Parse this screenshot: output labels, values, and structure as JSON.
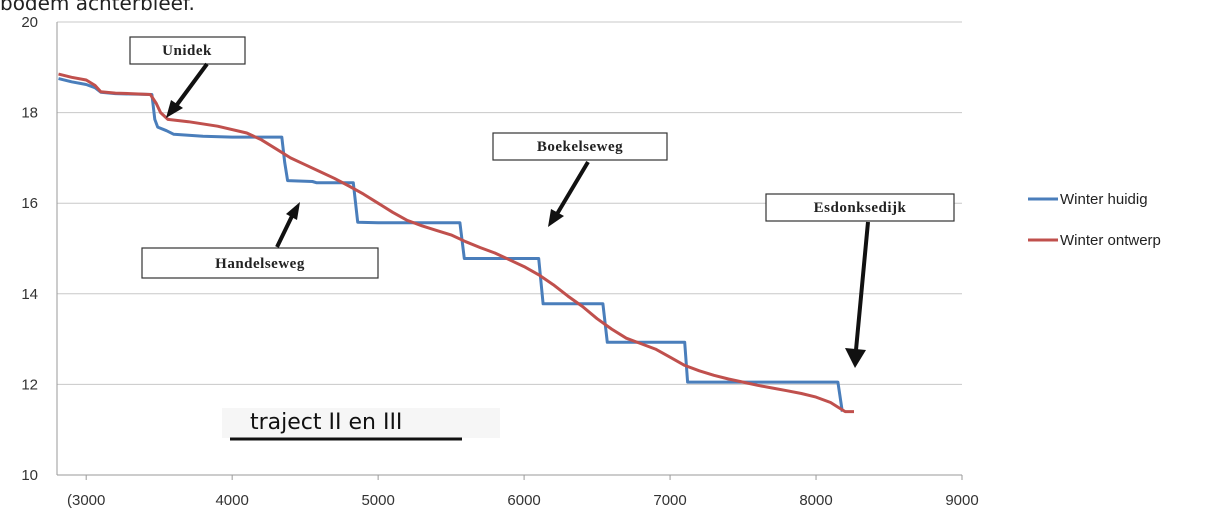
{
  "page": {
    "top_text": "bodem achterbleef."
  },
  "chart_data": {
    "type": "line",
    "title": "",
    "xlabel": "",
    "ylabel": "",
    "xlim": [
      2800,
      9000
    ],
    "ylim": [
      10,
      20
    ],
    "x_ticks": [
      3000,
      4000,
      5000,
      6000,
      7000,
      8000,
      9000
    ],
    "x_tick_labels": [
      "(3000",
      "4000",
      "5000",
      "6000",
      "7000",
      "8000",
      "9000"
    ],
    "y_ticks": [
      10,
      12,
      14,
      16,
      18,
      20
    ],
    "y_tick_labels": [
      "10",
      "12",
      "14",
      "16",
      "18",
      "20"
    ],
    "grid": "horizontal",
    "legend_position": "right",
    "series": [
      {
        "name": "Winter huidig",
        "color": "#4a7ebb",
        "points": [
          [
            2810,
            18.75
          ],
          [
            2900,
            18.68
          ],
          [
            3000,
            18.62
          ],
          [
            3060,
            18.55
          ],
          [
            3100,
            18.45
          ],
          [
            3200,
            18.42
          ],
          [
            3300,
            18.41
          ],
          [
            3450,
            18.4
          ],
          [
            3470,
            17.85
          ],
          [
            3490,
            17.68
          ],
          [
            3550,
            17.6
          ],
          [
            3600,
            17.52
          ],
          [
            3800,
            17.48
          ],
          [
            4000,
            17.46
          ],
          [
            4200,
            17.46
          ],
          [
            4340,
            17.46
          ],
          [
            4360,
            16.9
          ],
          [
            4380,
            16.5
          ],
          [
            4550,
            16.48
          ],
          [
            4580,
            16.45
          ],
          [
            4830,
            16.45
          ],
          [
            4860,
            15.58
          ],
          [
            5000,
            15.57
          ],
          [
            5560,
            15.57
          ],
          [
            5590,
            14.78
          ],
          [
            6100,
            14.78
          ],
          [
            6130,
            13.78
          ],
          [
            6540,
            13.78
          ],
          [
            6570,
            12.93
          ],
          [
            7100,
            12.93
          ],
          [
            7120,
            12.05
          ],
          [
            8150,
            12.05
          ],
          [
            8180,
            11.4
          ]
        ]
      },
      {
        "name": "Winter ontwerp",
        "color": "#c0504d",
        "points": [
          [
            2810,
            18.85
          ],
          [
            2900,
            18.78
          ],
          [
            3000,
            18.72
          ],
          [
            3060,
            18.6
          ],
          [
            3100,
            18.46
          ],
          [
            3200,
            18.43
          ],
          [
            3300,
            18.42
          ],
          [
            3440,
            18.4
          ],
          [
            3480,
            18.2
          ],
          [
            3510,
            18.0
          ],
          [
            3560,
            17.85
          ],
          [
            3700,
            17.8
          ],
          [
            3900,
            17.7
          ],
          [
            4100,
            17.55
          ],
          [
            4200,
            17.4
          ],
          [
            4300,
            17.2
          ],
          [
            4400,
            17.0
          ],
          [
            4500,
            16.85
          ],
          [
            4600,
            16.7
          ],
          [
            4700,
            16.55
          ],
          [
            4800,
            16.38
          ],
          [
            4900,
            16.2
          ],
          [
            5000,
            16.0
          ],
          [
            5100,
            15.8
          ],
          [
            5200,
            15.62
          ],
          [
            5300,
            15.5
          ],
          [
            5400,
            15.4
          ],
          [
            5500,
            15.3
          ],
          [
            5600,
            15.15
          ],
          [
            5700,
            15.02
          ],
          [
            5800,
            14.9
          ],
          [
            5900,
            14.75
          ],
          [
            6000,
            14.6
          ],
          [
            6100,
            14.42
          ],
          [
            6200,
            14.2
          ],
          [
            6300,
            13.95
          ],
          [
            6400,
            13.72
          ],
          [
            6500,
            13.45
          ],
          [
            6600,
            13.22
          ],
          [
            6700,
            13.02
          ],
          [
            6800,
            12.9
          ],
          [
            6900,
            12.78
          ],
          [
            7000,
            12.6
          ],
          [
            7100,
            12.42
          ],
          [
            7200,
            12.3
          ],
          [
            7300,
            12.2
          ],
          [
            7400,
            12.12
          ],
          [
            7500,
            12.05
          ],
          [
            7600,
            11.98
          ],
          [
            7700,
            11.92
          ],
          [
            7800,
            11.86
          ],
          [
            7900,
            11.8
          ],
          [
            8000,
            11.72
          ],
          [
            8100,
            11.6
          ],
          [
            8150,
            11.5
          ],
          [
            8200,
            11.4
          ],
          [
            8260,
            11.4
          ]
        ]
      }
    ],
    "annotations": [
      {
        "label": "Unidek",
        "arrow_to": [
          3580,
          17.9
        ]
      },
      {
        "label": "Boekelseweg",
        "arrow_to": [
          6180,
          15.6
        ]
      },
      {
        "label": "Handelseweg",
        "arrow_to": [
          4420,
          16.2
        ]
      },
      {
        "label": "Esdonksedijk",
        "arrow_to": [
          8250,
          12.35
        ]
      }
    ],
    "overlay_text": "traject II en III"
  }
}
